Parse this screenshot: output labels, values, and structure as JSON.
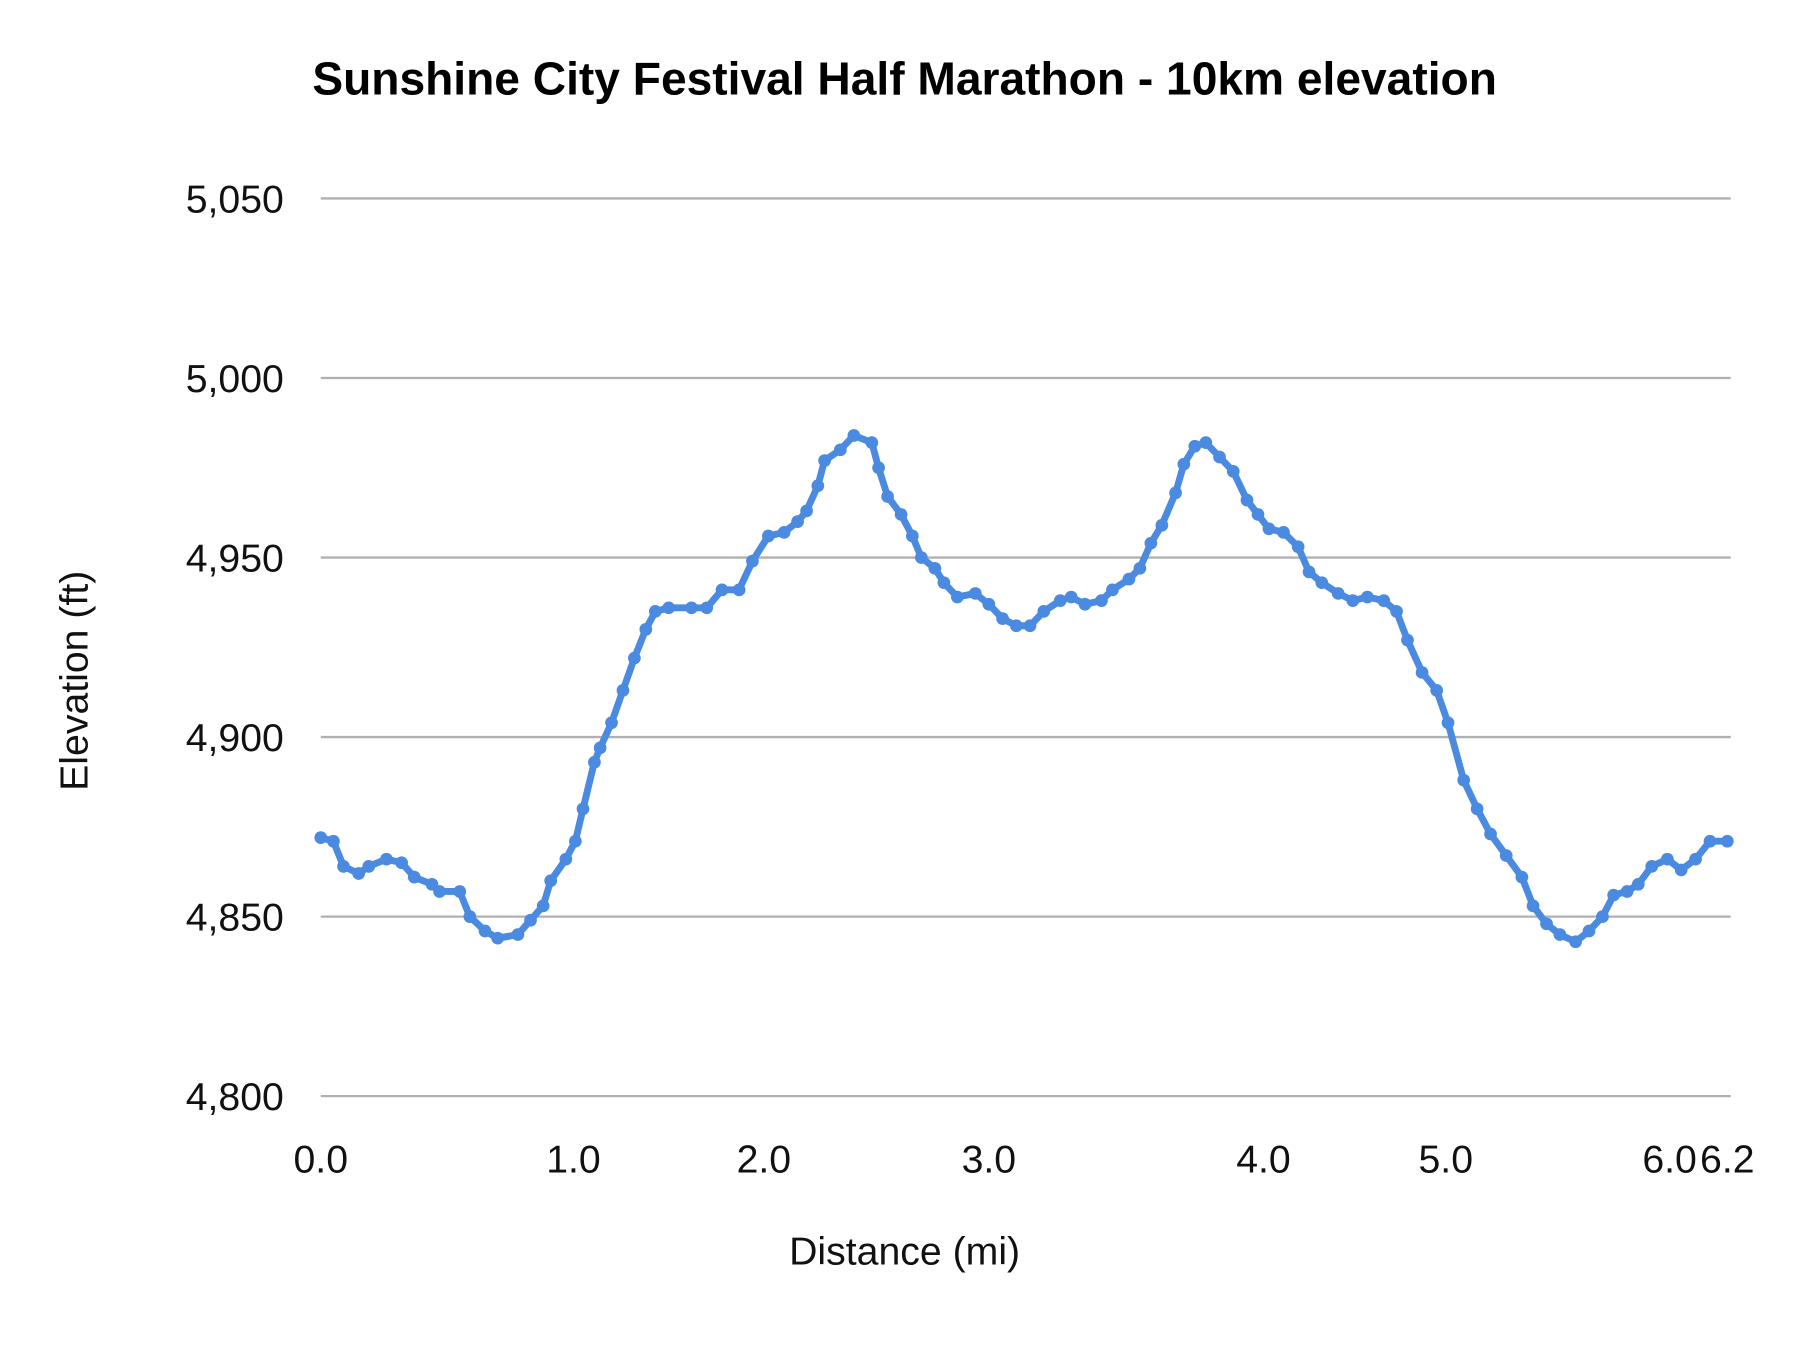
{
  "chart_data": {
    "type": "scatter",
    "title": "Sunshine City Festival Half Marathon - 10km elevation",
    "xlabel": "Distance (mi)",
    "ylabel": "Elevation (ft)",
    "ylim": [
      4800,
      5050
    ],
    "yticks": [
      "4,800",
      "4,850",
      "4,900",
      "4,950",
      "5,000",
      "5,050"
    ],
    "ytick_values": [
      4800,
      4850,
      4900,
      4950,
      5000,
      5050
    ],
    "xticks": [
      "0.0",
      "1.0",
      "2.0",
      "3.0",
      "4.0",
      "5.0",
      "6.0",
      "6.2"
    ],
    "xtick_values": [
      0,
      1,
      2,
      3,
      4,
      5,
      6,
      6.2
    ],
    "grid": "horizontal",
    "legend": "none",
    "color": "#4a8ae0",
    "points": [
      [
        0.0,
        4872
      ],
      [
        0.05,
        4871
      ],
      [
        0.09,
        4864
      ],
      [
        0.15,
        4862
      ],
      [
        0.19,
        4864
      ],
      [
        0.26,
        4866
      ],
      [
        0.32,
        4865
      ],
      [
        0.37,
        4861
      ],
      [
        0.44,
        4859
      ],
      [
        0.47,
        4857
      ],
      [
        0.55,
        4857
      ],
      [
        0.59,
        4850
      ],
      [
        0.65,
        4846
      ],
      [
        0.7,
        4844
      ],
      [
        0.78,
        4845
      ],
      [
        0.83,
        4849
      ],
      [
        0.88,
        4853
      ],
      [
        0.91,
        4860
      ],
      [
        0.97,
        4866
      ],
      [
        1.01,
        4871
      ],
      [
        1.05,
        4880
      ],
      [
        1.11,
        4893
      ],
      [
        1.14,
        4897
      ],
      [
        1.2,
        4904
      ],
      [
        1.26,
        4913
      ],
      [
        1.32,
        4922
      ],
      [
        1.38,
        4930
      ],
      [
        1.43,
        4935
      ],
      [
        1.5,
        4936
      ],
      [
        1.62,
        4936
      ],
      [
        1.7,
        4936
      ],
      [
        1.78,
        4941
      ],
      [
        1.87,
        4941
      ],
      [
        1.94,
        4949
      ],
      [
        2.02,
        4956
      ],
      [
        2.09,
        4957
      ],
      [
        2.15,
        4960
      ],
      [
        2.19,
        4963
      ],
      [
        2.24,
        4970
      ],
      [
        2.27,
        4977
      ],
      [
        2.34,
        4980
      ],
      [
        2.4,
        4984
      ],
      [
        2.48,
        4982
      ],
      [
        2.51,
        4975
      ],
      [
        2.55,
        4967
      ],
      [
        2.61,
        4962
      ],
      [
        2.66,
        4956
      ],
      [
        2.7,
        4950
      ],
      [
        2.76,
        4947
      ],
      [
        2.8,
        4943
      ],
      [
        2.86,
        4939
      ],
      [
        2.94,
        4940
      ],
      [
        3.0,
        4937
      ],
      [
        3.05,
        4933
      ],
      [
        3.1,
        4931
      ],
      [
        3.15,
        4931
      ],
      [
        3.2,
        4935
      ],
      [
        3.26,
        4938
      ],
      [
        3.3,
        4939
      ],
      [
        3.35,
        4937
      ],
      [
        3.41,
        4938
      ],
      [
        3.45,
        4941
      ],
      [
        3.51,
        4944
      ],
      [
        3.55,
        4947
      ],
      [
        3.59,
        4954
      ],
      [
        3.63,
        4959
      ],
      [
        3.68,
        4968
      ],
      [
        3.71,
        4976
      ],
      [
        3.75,
        4981
      ],
      [
        3.79,
        4982
      ],
      [
        3.84,
        4978
      ],
      [
        3.89,
        4974
      ],
      [
        3.94,
        4966
      ],
      [
        3.98,
        4962
      ],
      [
        4.03,
        4958
      ],
      [
        4.11,
        4957
      ],
      [
        4.19,
        4953
      ],
      [
        4.25,
        4946
      ],
      [
        4.32,
        4943
      ],
      [
        4.41,
        4940
      ],
      [
        4.49,
        4938
      ],
      [
        4.57,
        4939
      ],
      [
        4.66,
        4938
      ],
      [
        4.73,
        4935
      ],
      [
        4.79,
        4927
      ],
      [
        4.87,
        4918
      ],
      [
        4.95,
        4913
      ],
      [
        5.01,
        4904
      ],
      [
        5.08,
        4888
      ],
      [
        5.14,
        4880
      ],
      [
        5.2,
        4873
      ],
      [
        5.27,
        4867
      ],
      [
        5.34,
        4861
      ],
      [
        5.39,
        4853
      ],
      [
        5.45,
        4848
      ],
      [
        5.51,
        4845
      ],
      [
        5.58,
        4843
      ],
      [
        5.64,
        4846
      ],
      [
        5.7,
        4850
      ],
      [
        5.75,
        4856
      ],
      [
        5.81,
        4857
      ],
      [
        5.86,
        4859
      ],
      [
        5.92,
        4864
      ],
      [
        5.99,
        4866
      ],
      [
        6.04,
        4863
      ],
      [
        6.09,
        4866
      ],
      [
        6.14,
        4871
      ],
      [
        6.2,
        4871
      ]
    ]
  }
}
